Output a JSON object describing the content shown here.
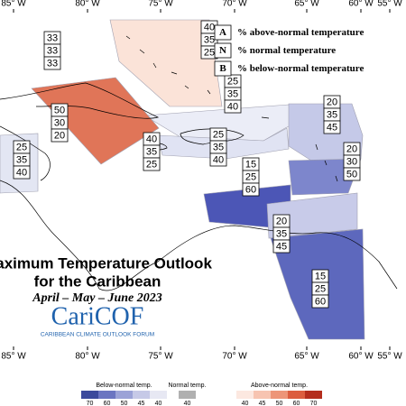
{
  "longitude_labels_top": [
    "85° W",
    "80° W",
    "75° W",
    "70° W",
    "65° W",
    "60° W",
    "55° W"
  ],
  "longitude_labels_bottom": [
    "85° W",
    "80° W",
    "75° W",
    "70° W",
    "65° W",
    "60° W",
    "55° W"
  ],
  "legend": {
    "rows": [
      {
        "key": "A",
        "text": "% above-normal temperature"
      },
      {
        "key": "N",
        "text": "% normal temperature"
      },
      {
        "key": "B",
        "text": "% below-normal temperature"
      }
    ]
  },
  "regions": [
    {
      "above": 33,
      "normal": 33,
      "below": 33
    },
    {
      "above": 40,
      "normal": 35,
      "below": 25
    },
    {
      "above": 50,
      "normal": 30,
      "below": 20
    },
    {
      "above": 25,
      "normal": 35,
      "below": 40
    },
    {
      "above": 20,
      "normal": 35,
      "below": 45
    },
    {
      "above": 25,
      "normal": 35,
      "below": 40
    },
    {
      "above": 40,
      "normal": 35,
      "below": 25
    },
    {
      "above": 25,
      "normal": 35,
      "below": 40
    },
    {
      "above": 20,
      "normal": 30,
      "below": 50
    },
    {
      "above": 15,
      "normal": 25,
      "below": 60
    },
    {
      "above": 20,
      "normal": 35,
      "below": 45
    },
    {
      "above": 15,
      "normal": 25,
      "below": 60
    }
  ],
  "title": {
    "line1": "Maximum Temperature Outlook",
    "line2": "for the Caribbean",
    "period": "April – May – June 2023"
  },
  "logo": {
    "name": "CariCOF",
    "tagline": "CARIBBEAN CLIMATE OUTLOOK FORUM"
  },
  "colorbar": {
    "below": {
      "title": "Below-normal temp.",
      "ticks": [
        70,
        60,
        50,
        45,
        40
      ]
    },
    "normal": {
      "title": "Normal temp.",
      "ticks": [
        40
      ]
    },
    "above": {
      "title": "Above-normal temp.",
      "ticks": [
        40,
        45,
        50,
        60,
        70
      ]
    }
  }
}
